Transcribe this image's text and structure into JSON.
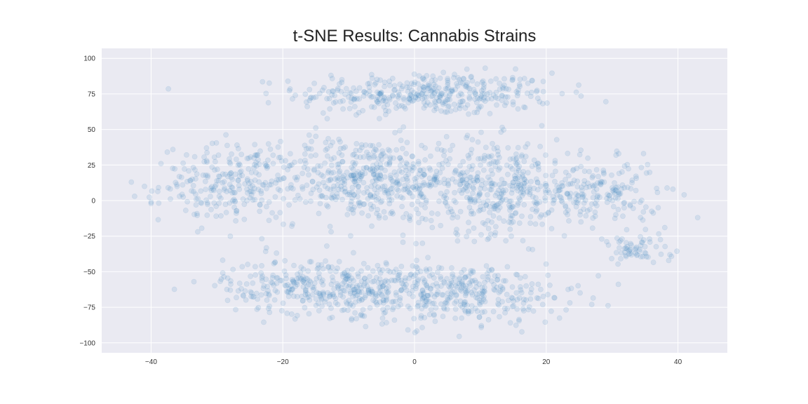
{
  "chart_data": {
    "type": "scatter",
    "title": "t-SNE Results: Cannabis Strains",
    "xlabel": "",
    "ylabel": "",
    "xlim": [
      -47.5,
      47.5
    ],
    "ylim": [
      -107,
      107
    ],
    "xticks": [
      -40,
      -20,
      0,
      20,
      40
    ],
    "yticks": [
      -100,
      -75,
      -50,
      -25,
      0,
      25,
      50,
      75,
      100
    ],
    "xtick_labels": [
      "−40",
      "−20",
      "0",
      "20",
      "40"
    ],
    "ytick_labels": [
      "−100",
      "−75",
      "−50",
      "−25",
      "0",
      "25",
      "50",
      "75",
      "100"
    ],
    "grid": true,
    "background": "#eaeaf2",
    "marker_color": "#4c8dc5",
    "marker_alpha": 0.15,
    "clusters": [
      {
        "center": [
          2,
          75
        ],
        "x_spread": 13,
        "y_spread": 10,
        "n": 380
      },
      {
        "center": [
          -28,
          12
        ],
        "x_spread": 7,
        "y_spread": 18,
        "n": 230
      },
      {
        "center": [
          -8,
          15
        ],
        "x_spread": 9,
        "y_spread": 20,
        "n": 420
      },
      {
        "center": [
          12,
          10
        ],
        "x_spread": 9,
        "y_spread": 22,
        "n": 420
      },
      {
        "center": [
          28,
          5
        ],
        "x_spread": 6,
        "y_spread": 15,
        "n": 170
      },
      {
        "center": [
          -14,
          -60
        ],
        "x_spread": 10,
        "y_spread": 13,
        "n": 330
      },
      {
        "center": [
          6,
          -65
        ],
        "x_spread": 12,
        "y_spread": 14,
        "n": 380
      },
      {
        "center": [
          33,
          -35
        ],
        "x_spread": 4,
        "y_spread": 7,
        "n": 60
      }
    ],
    "outliers": [
      [
        -43,
        13
      ],
      [
        -42.5,
        3
      ],
      [
        -41,
        10
      ],
      [
        -40,
        -2
      ],
      [
        -38.5,
        26
      ],
      [
        43,
        -12
      ],
      [
        37,
        -5
      ],
      [
        38,
        -19
      ],
      [
        31,
        33
      ],
      [
        -33.5,
        -57
      ]
    ]
  }
}
